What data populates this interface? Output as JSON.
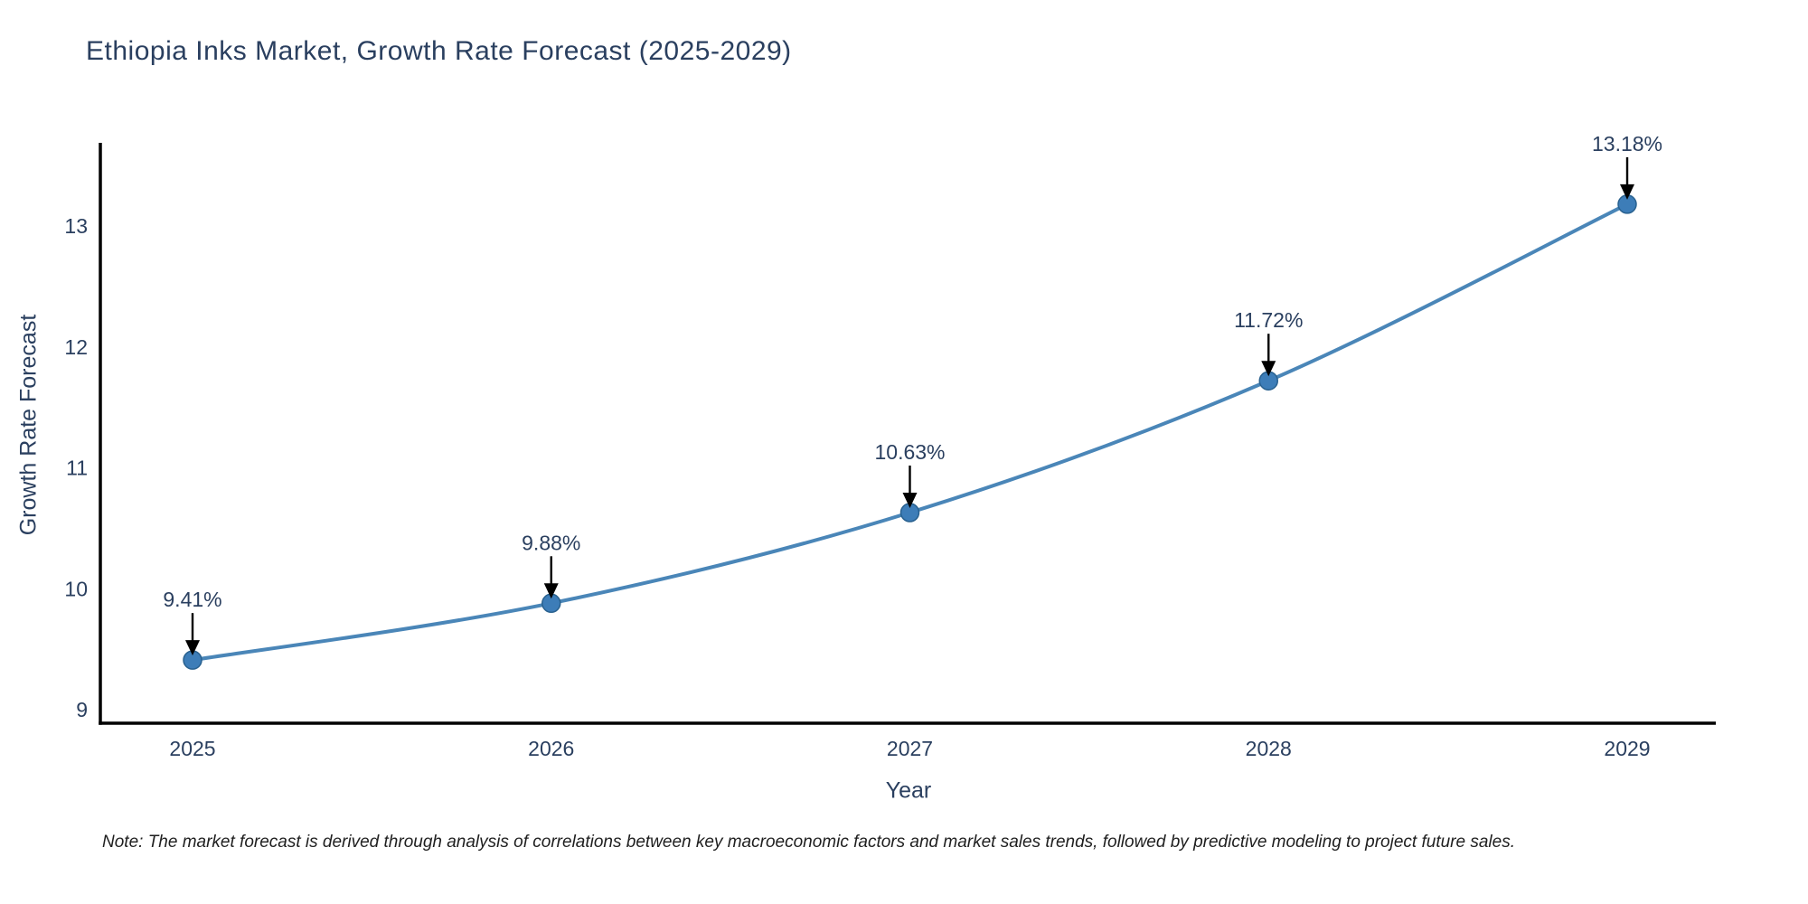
{
  "chart": {
    "title": "Ethiopia Inks Market, Growth Rate Forecast (2025-2029)",
    "xlabel": "Year",
    "ylabel": "Growth Rate Forecast",
    "note": "Note: The market forecast is derived through analysis of correlations between key macroeconomic factors and market sales trends, followed by predictive modeling to project future sales.",
    "colors": {
      "line": "#4a86b8",
      "marker_fill": "#3d7db8",
      "marker_edge": "#29618f",
      "axis": "#000000",
      "text": "#2a3f5f",
      "annotation_arrow": "#000000"
    }
  },
  "chart_data": {
    "type": "line",
    "title": "Ethiopia Inks Market, Growth Rate Forecast (2025-2029)",
    "xlabel": "Year",
    "ylabel": "Growth Rate Forecast",
    "x": [
      2025,
      2026,
      2027,
      2028,
      2029
    ],
    "values": [
      9.41,
      9.88,
      10.63,
      11.72,
      13.18
    ],
    "point_labels": [
      "9.41%",
      "9.88%",
      "10.63%",
      "11.72%",
      "13.18%"
    ],
    "xticks": [
      "2025",
      "2026",
      "2027",
      "2028",
      "2029"
    ],
    "yticks": [
      9,
      10,
      11,
      12,
      13
    ],
    "xlim": [
      2024.74,
      2029.25
    ],
    "ylim": [
      8.89,
      13.67
    ],
    "grid": false,
    "legend": false,
    "annotations": "arrow-down-to-point"
  }
}
